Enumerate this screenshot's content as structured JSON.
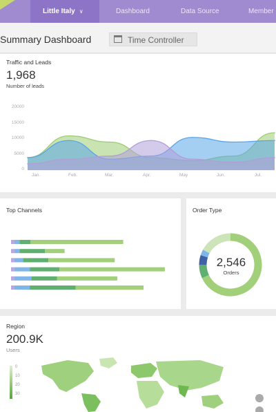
{
  "nav": {
    "items": [
      "Little Italy",
      "Dashboard",
      "Data Source",
      "Member"
    ]
  },
  "header": {
    "title": "Summary Dashboard",
    "time_controller": "Time Controller"
  },
  "traffic": {
    "title": "Traffic and Leads",
    "value": "1,968",
    "caption": "Number of leads"
  },
  "chart_data": [
    {
      "type": "area",
      "title": "Traffic and Leads",
      "categories": [
        "Jan.",
        "Feb.",
        "Mar.",
        "Apr.",
        "May",
        "Jun.",
        "Jul."
      ],
      "ylim": [
        0,
        20000
      ],
      "yticks": [
        20000,
        15000,
        10000,
        5000,
        0
      ],
      "series": [
        {
          "values": [
            4000,
            11000,
            9000,
            4000,
            3000,
            4500,
            12000
          ],
          "color": "#9ccc72"
        },
        {
          "values": [
            4000,
            9500,
            3500,
            4500,
            10500,
            9000,
            9500
          ],
          "color": "#5aa5e8"
        },
        {
          "values": [
            2000,
            3500,
            4500,
            9500,
            3500,
            2500,
            4000
          ],
          "color": "#b09ed8"
        }
      ],
      "grid": false
    },
    {
      "type": "bar",
      "title": "Top Channels",
      "orientation": "horizontal",
      "stacked": true,
      "segment_colors": [
        "#b9a7df",
        "#7fb5e8",
        "#5fb070",
        "#a2cf7a"
      ],
      "rows": [
        [
          4,
          6,
          13,
          109
        ],
        [
          4,
          6,
          30,
          23
        ],
        [
          4,
          10,
          30,
          78
        ],
        [
          4,
          18,
          35,
          124
        ],
        [
          4,
          20,
          30,
          71
        ],
        [
          4,
          18,
          54,
          80
        ]
      ],
      "xlim": [
        0,
        190
      ]
    },
    {
      "type": "pie",
      "title": "Order Type",
      "center_value": "2,546",
      "center_label": "Orders",
      "slices": [
        {
          "value": 68,
          "color": "#a2cf7a"
        },
        {
          "value": 7,
          "color": "#5fb070"
        },
        {
          "value": 5,
          "color": "#3f62a6"
        },
        {
          "value": 3,
          "color": "#7fb5e8"
        },
        {
          "value": 17,
          "color": "#cde4b8"
        }
      ]
    }
  ],
  "channels": {
    "title": "Top Channels"
  },
  "order_type": {
    "title": "Order Type",
    "value": "2,546",
    "label": "Orders"
  },
  "region": {
    "title": "Region",
    "value": "200.9K",
    "caption": "Users",
    "scale": [
      "0",
      "10",
      "20",
      "30"
    ]
  },
  "colors": {
    "nav_bg": "#a08ad0",
    "nav_active": "#8e74c6",
    "accent_green": "#c7d96b",
    "map_green": "#7cbf5e"
  },
  "icons": {
    "time_controller": "calendar-icon",
    "nav_active": "chevron-down-icon",
    "zoom_in": "zoom-in-icon",
    "zoom_out": "zoom-out-icon"
  }
}
